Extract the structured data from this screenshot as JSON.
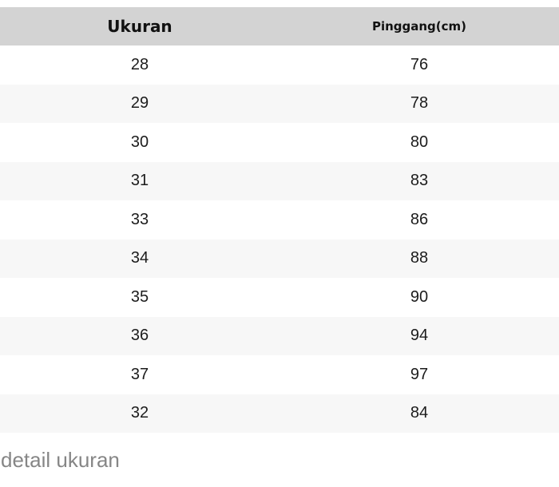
{
  "chart_data": {
    "type": "table",
    "columns": [
      "Ukuran",
      "Pinggang(cm)"
    ],
    "rows": [
      [
        "28",
        "76"
      ],
      [
        "29",
        "78"
      ],
      [
        "30",
        "80"
      ],
      [
        "31",
        "83"
      ],
      [
        "33",
        "86"
      ],
      [
        "34",
        "88"
      ],
      [
        "35",
        "90"
      ],
      [
        "36",
        "94"
      ],
      [
        "37",
        "97"
      ],
      [
        "32",
        "84"
      ]
    ],
    "caption": "detail ukuran"
  },
  "footer": {
    "caption": "detail ukuran"
  },
  "colors": {
    "header_bg": "#d3d3d3",
    "row_alt_bg": "#f7f7f7",
    "row_bg": "#ffffff",
    "header_text": "#111111",
    "cell_text": "#1c1c1c",
    "caption_text": "#868686"
  }
}
